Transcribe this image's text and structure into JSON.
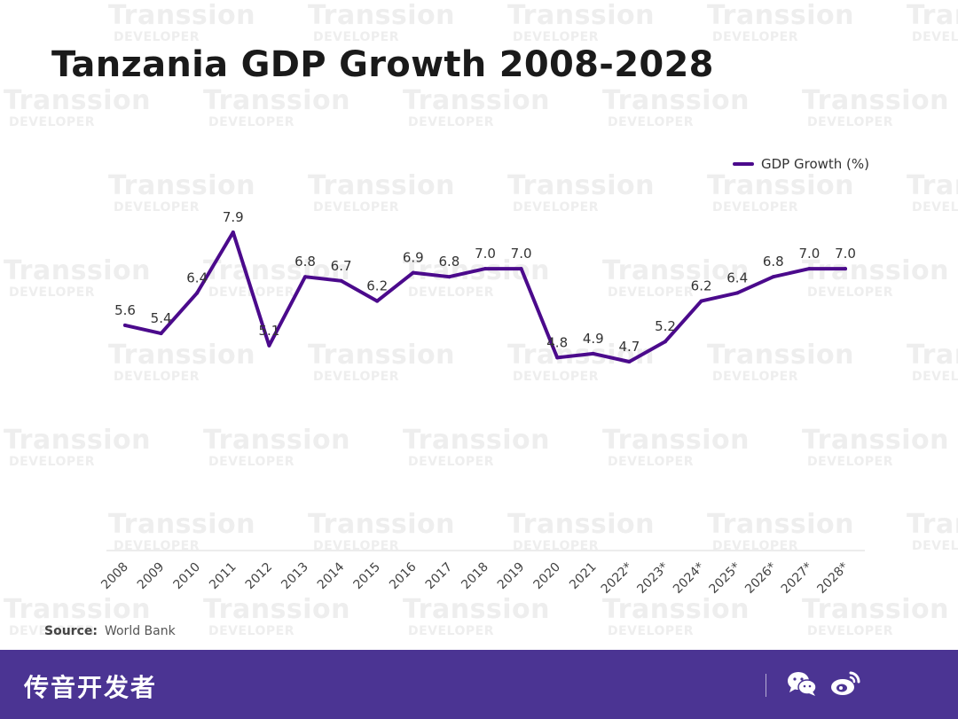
{
  "page": {
    "title": "Tanzania GDP Growth 2008-2028"
  },
  "watermark": {
    "brand": "Transsion",
    "sub": "DEVELOPER"
  },
  "chart_data": {
    "type": "line",
    "title": "Tanzania GDP Growth 2008-2028",
    "xlabel": "",
    "ylabel": "",
    "categories": [
      "2008",
      "2009",
      "2010",
      "2011",
      "2012",
      "2013",
      "2014",
      "2015",
      "2016",
      "2017",
      "2018",
      "2019",
      "2020",
      "2021",
      "2022*",
      "2023*",
      "2024*",
      "2025*",
      "2026*",
      "2027*",
      "2028*"
    ],
    "series": [
      {
        "name": "GDP Growth (%)",
        "values": [
          5.6,
          5.4,
          6.4,
          7.9,
          5.1,
          6.8,
          6.7,
          6.2,
          6.9,
          6.8,
          7.0,
          7.0,
          4.8,
          4.9,
          4.7,
          5.2,
          6.2,
          6.4,
          6.8,
          7.0,
          7.0
        ],
        "color": "#4b0a8c"
      }
    ],
    "value_labels": [
      "5.6",
      "5.4",
      "6.4",
      "7.9",
      "5.1",
      "6.8",
      "6.7",
      "6.2",
      "6.9",
      "6.8",
      "7.0",
      "7.0",
      "4.8",
      "4.9",
      "4.7",
      "5.2",
      "6.2",
      "6.4",
      "6.8",
      "7.0",
      "7.0"
    ],
    "ylim": [
      0,
      8.5
    ],
    "grid": false,
    "axis_line_color": "#d9d9d9",
    "legend_position": "top-right"
  },
  "source": {
    "label": "Source:",
    "value": "World Bank"
  },
  "footer": {
    "brand_text": "传音开发者",
    "background_color": "#4b3493",
    "icons": [
      "wechat-icon",
      "weibo-icon"
    ]
  }
}
